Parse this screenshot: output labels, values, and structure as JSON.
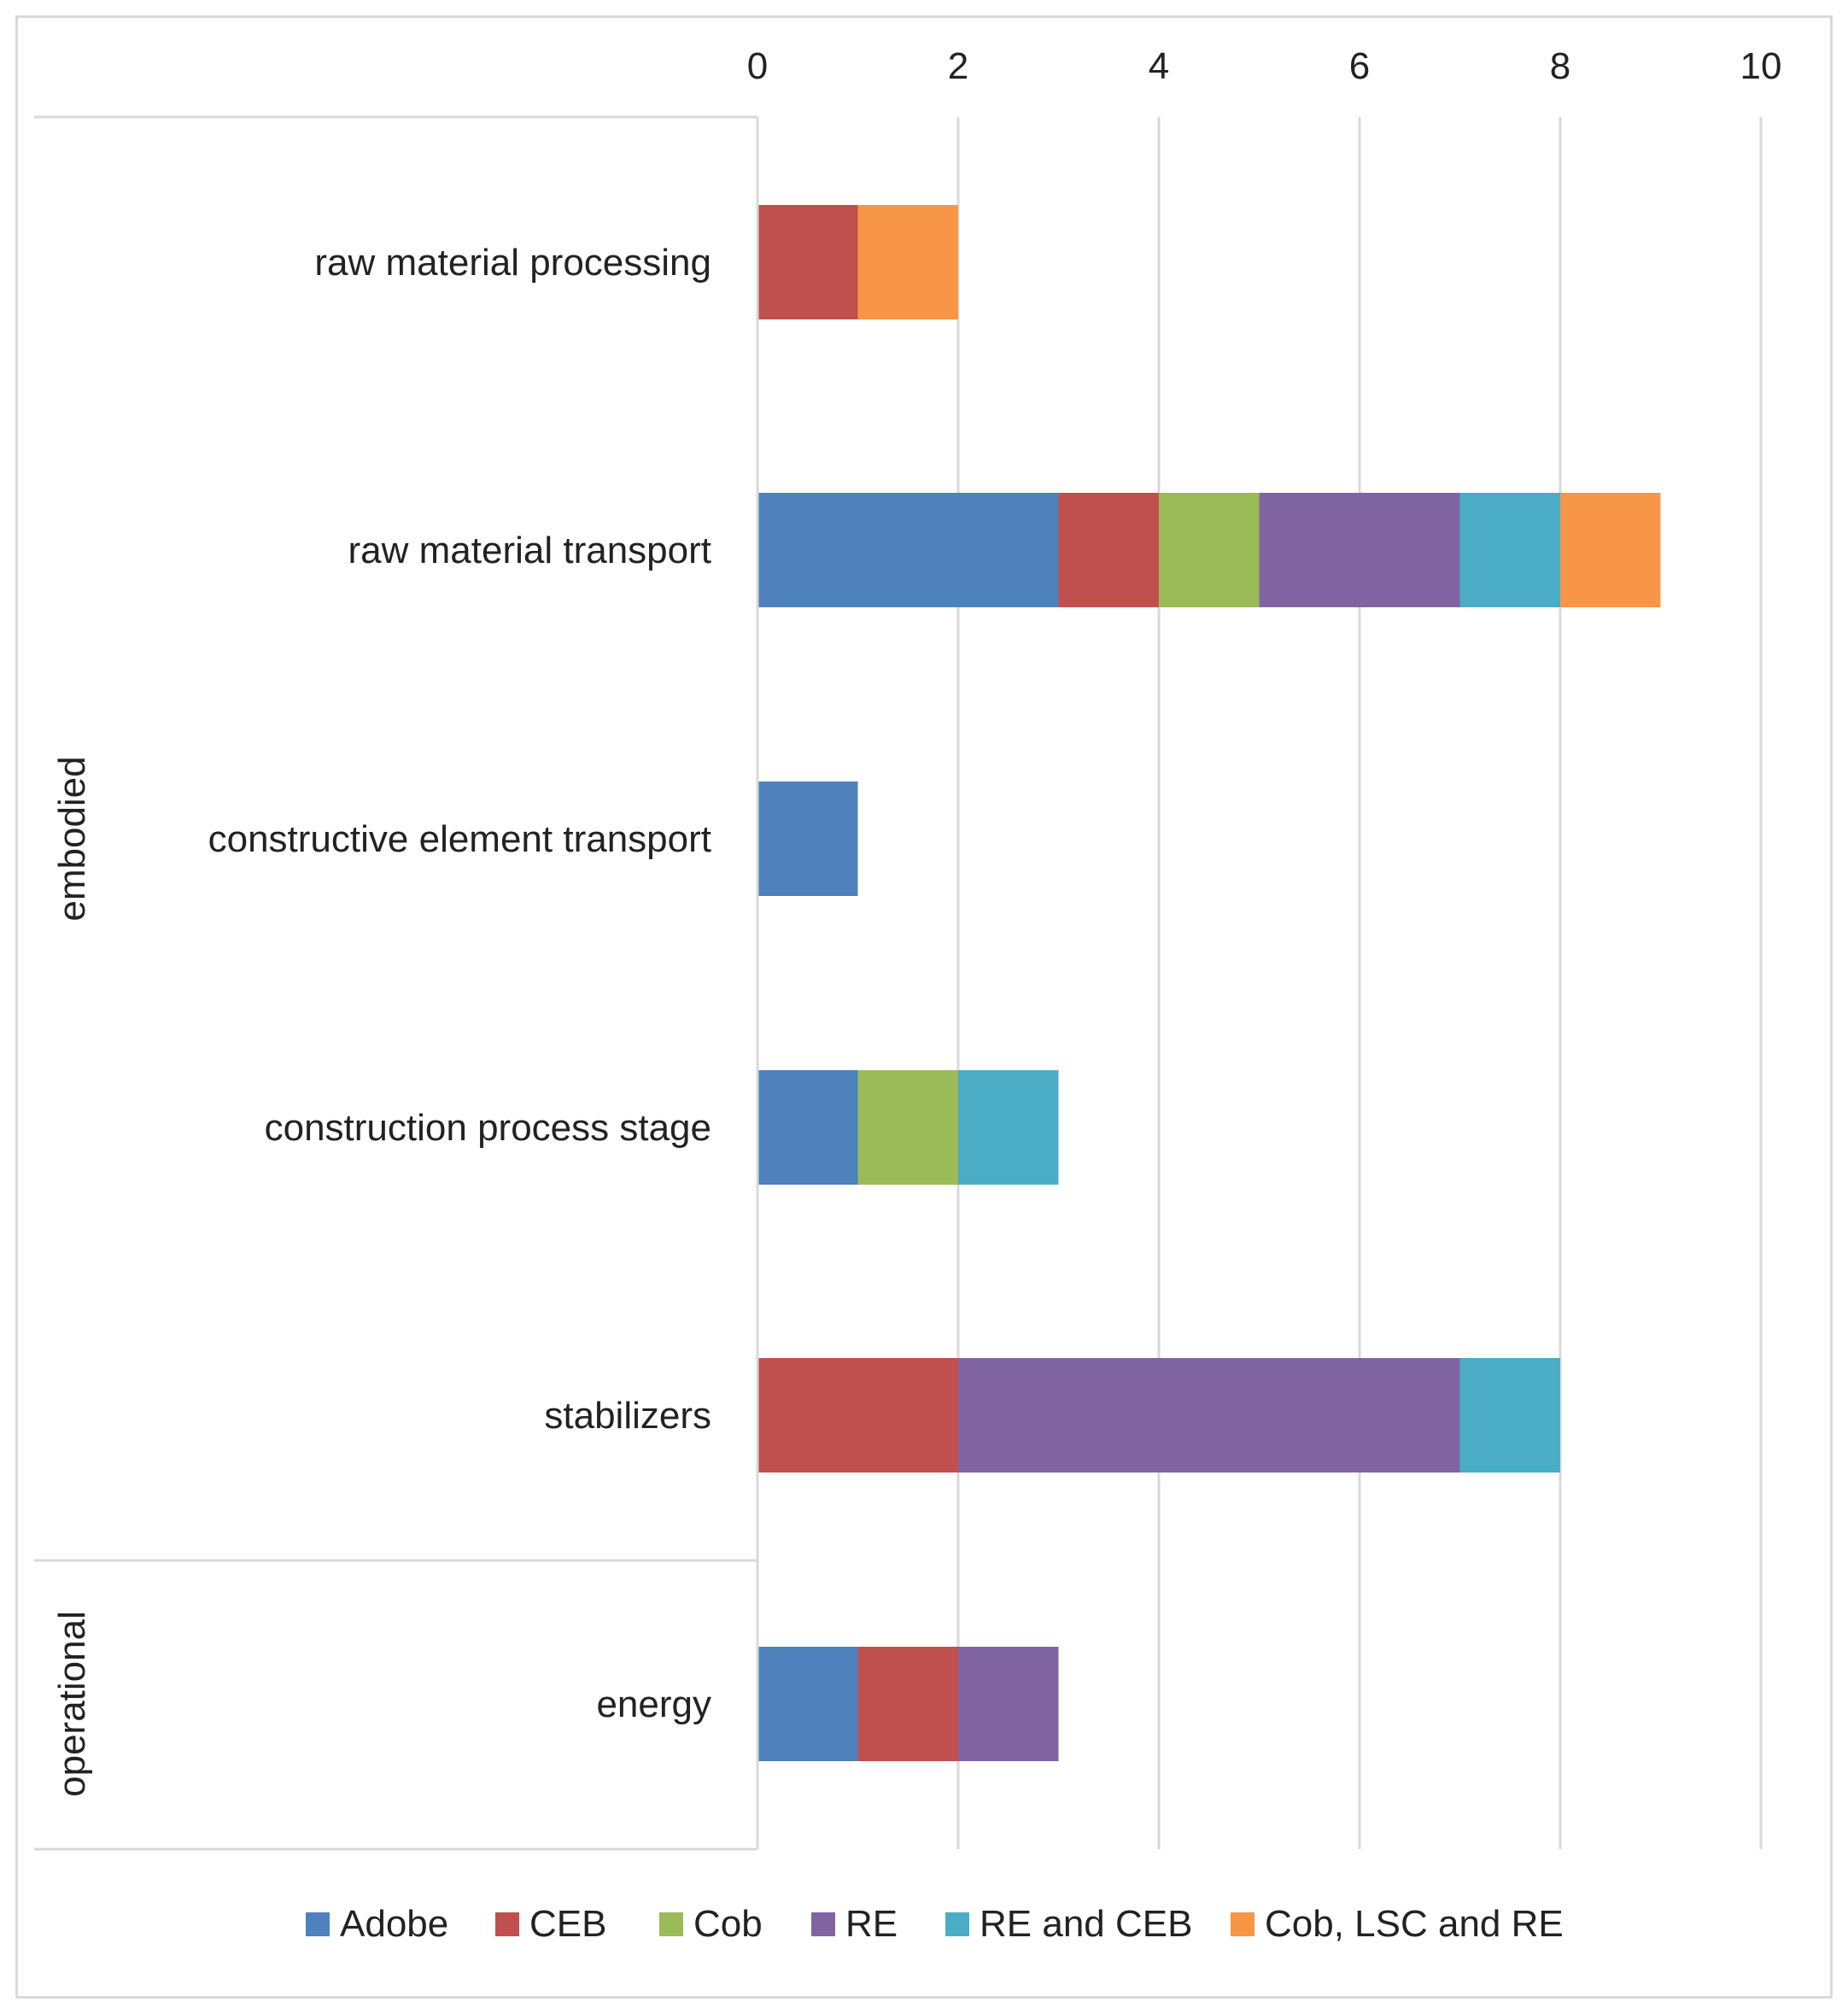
{
  "chart_data": {
    "type": "bar",
    "orientation": "horizontal",
    "stacked": true,
    "title": "",
    "xlabel": "",
    "ylabel": "",
    "xlim": [
      0,
      10
    ],
    "x_ticks": [
      "0",
      "2",
      "4",
      "6",
      "8",
      "10"
    ],
    "grid": true,
    "legend_position": "bottom",
    "groups": [
      {
        "name": "embodied",
        "categories": [
          "raw material processing",
          "raw material transport",
          "constructive element transport",
          "construction process stage",
          "stabilizers"
        ]
      },
      {
        "name": "operational",
        "categories": [
          "energy"
        ]
      }
    ],
    "categories": [
      "raw material processing",
      "raw material transport",
      "constructive element transport",
      "construction process stage",
      "stabilizers",
      "energy"
    ],
    "series": [
      {
        "name": "Adobe",
        "color": "#4f81bd",
        "values": [
          0,
          3,
          1,
          1,
          0,
          1
        ]
      },
      {
        "name": "CEB",
        "color": "#c0504d",
        "values": [
          1,
          1,
          0,
          0,
          2,
          1
        ]
      },
      {
        "name": "Cob",
        "color": "#9bbb59",
        "values": [
          0,
          1,
          0,
          1,
          0,
          0
        ]
      },
      {
        "name": "RE",
        "color": "#8064a2",
        "values": [
          0,
          2,
          0,
          0,
          5,
          1
        ]
      },
      {
        "name": "RE and CEB",
        "color": "#4bacc6",
        "values": [
          0,
          1,
          0,
          1,
          1,
          0
        ]
      },
      {
        "name": "Cob, LSC and RE",
        "color": "#f79646",
        "values": [
          1,
          1,
          0,
          0,
          0,
          0
        ]
      }
    ]
  }
}
